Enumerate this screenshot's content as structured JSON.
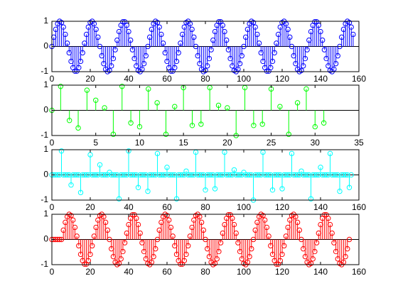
{
  "chart_data": [
    {
      "type": "stem",
      "color": "#0000ff",
      "xlim": [
        0,
        160
      ],
      "ylim": [
        -1,
        1
      ],
      "xticks": [
        0,
        20,
        40,
        60,
        80,
        100,
        120,
        140,
        160
      ],
      "yticks": [
        -1,
        0,
        1
      ],
      "x": [
        0,
        1,
        2,
        3,
        4,
        5,
        6,
        7,
        8,
        9,
        10,
        11,
        12,
        13,
        14,
        15,
        16,
        17,
        18,
        19,
        20,
        21,
        22,
        23,
        24,
        25,
        26,
        27,
        28,
        29,
        30,
        31,
        32,
        33,
        34,
        35,
        36,
        37,
        38,
        39,
        40,
        41,
        42,
        43,
        44,
        45,
        46,
        47,
        48,
        49,
        50,
        51,
        52,
        53,
        54,
        55,
        56,
        57,
        58,
        59,
        60,
        61,
        62,
        63,
        64,
        65,
        66,
        67,
        68,
        69,
        70,
        71,
        72,
        73,
        74,
        75,
        76,
        77,
        78,
        79,
        80,
        81,
        82,
        83,
        84,
        85,
        86,
        87,
        88,
        89,
        90,
        91,
        92,
        93,
        94,
        95,
        96,
        97,
        98,
        99,
        100,
        101,
        102,
        103,
        104,
        105,
        106,
        107,
        108,
        109,
        110,
        111,
        112,
        113,
        114,
        115,
        116,
        117,
        118,
        119,
        120,
        121,
        122,
        123,
        124,
        125,
        126,
        127,
        128,
        129,
        130,
        131,
        132,
        133,
        134,
        135,
        136,
        137,
        138,
        139,
        140,
        141,
        142,
        143,
        144,
        145,
        146,
        147,
        148,
        149,
        150,
        151,
        152,
        153,
        154,
        155,
        156,
        157
      ],
      "values": [
        0,
        0.37,
        0.68,
        0.9,
        1,
        0.95,
        0.77,
        0.48,
        0.13,
        -0.25,
        -0.59,
        -0.84,
        -0.98,
        -0.98,
        -0.84,
        -0.59,
        -0.25,
        0.13,
        0.48,
        0.77,
        0.95,
        1,
        0.9,
        0.68,
        0.37,
        0,
        -0.37,
        -0.68,
        -0.9,
        -1,
        -0.95,
        -0.77,
        -0.48,
        -0.13,
        0.25,
        0.59,
        0.84,
        0.98,
        0.98,
        0.84,
        0.59,
        0.25,
        -0.13,
        -0.48,
        -0.77,
        -0.95,
        -1,
        -0.9,
        -0.68,
        -0.37,
        0,
        0.37,
        0.68,
        0.9,
        1,
        0.95,
        0.77,
        0.48,
        0.13,
        -0.25,
        -0.59,
        -0.84,
        -0.98,
        -0.98,
        -0.84,
        -0.59,
        -0.25,
        0.13,
        0.48,
        0.77,
        0.95,
        1,
        0.9,
        0.68,
        0.37,
        0,
        -0.37,
        -0.68,
        -0.9,
        -1,
        -0.95,
        -0.77,
        -0.48,
        -0.13,
        0.25,
        0.59,
        0.84,
        0.98,
        0.98,
        0.84,
        0.59,
        0.25,
        -0.13,
        -0.48,
        -0.77,
        -0.95,
        -1,
        -0.9,
        -0.68,
        -0.37,
        0,
        0.37,
        0.68,
        0.9,
        1,
        0.95,
        0.77,
        0.48,
        0.13,
        -0.25,
        -0.59,
        -0.84,
        -0.98,
        -0.98,
        -0.84,
        -0.59,
        -0.25,
        0.13,
        0.48,
        0.77,
        0.95,
        1,
        0.9,
        0.68,
        0.37,
        0,
        -0.37,
        -0.68,
        -0.9,
        -1,
        -0.95,
        -0.77,
        -0.48,
        -0.13,
        0.25,
        0.59,
        0.84,
        0.98,
        0.98,
        0.84,
        0.59,
        0.25,
        -0.13,
        -0.48,
        -0.77,
        -0.95,
        -1,
        -0.9,
        -0.68,
        -0.37,
        0,
        0.37,
        0.68,
        0.9,
        1,
        0.95,
        0.77,
        0.48
      ]
    },
    {
      "type": "stem",
      "color": "#00ff00",
      "xlim": [
        0,
        35
      ],
      "ylim": [
        -1,
        1
      ],
      "xticks": [
        0,
        5,
        10,
        15,
        20,
        25,
        30,
        35
      ],
      "yticks": [
        -1,
        0,
        1
      ],
      "x": [
        0,
        1,
        2,
        3,
        4,
        5,
        6,
        7,
        8,
        9,
        10,
        11,
        12,
        13,
        14,
        15,
        16,
        17,
        18,
        19,
        20,
        21,
        22,
        23,
        24,
        25,
        26,
        27,
        28,
        29,
        30,
        31
      ],
      "values": [
        0,
        0.95,
        -0.4,
        -0.7,
        0.8,
        0.4,
        0.1,
        -0.95,
        0.95,
        -0.5,
        -0.65,
        0.85,
        0.3,
        -0.95,
        0.15,
        0.9,
        -0.6,
        -0.55,
        0.9,
        0.2,
        0.1,
        -1,
        0.9,
        -0.6,
        -0.55,
        0.85,
        0.15,
        -0.95,
        0.3,
        0.85,
        -0.65,
        -0.5
      ]
    },
    {
      "type": "stem",
      "color": "#00ffff",
      "xlim": [
        0,
        160
      ],
      "ylim": [
        -1,
        1
      ],
      "xticks": [
        0,
        20,
        40,
        60,
        80,
        100,
        120,
        140,
        160
      ],
      "yticks": [
        -1,
        0,
        1
      ],
      "x": [
        0,
        1,
        2,
        3,
        4,
        5,
        6,
        7,
        8,
        9,
        10,
        11,
        12,
        13,
        14,
        15,
        16,
        17,
        18,
        19,
        20,
        21,
        22,
        23,
        24,
        25,
        26,
        27,
        28,
        29,
        30,
        31,
        32,
        33,
        34,
        35,
        36,
        37,
        38,
        39,
        40,
        41,
        42,
        43,
        44,
        45,
        46,
        47,
        48,
        49,
        50,
        51,
        52,
        53,
        54,
        55,
        56,
        57,
        58,
        59,
        60,
        61,
        62,
        63,
        64,
        65,
        66,
        67,
        68,
        69,
        70,
        71,
        72,
        73,
        74,
        75,
        76,
        77,
        78,
        79,
        80,
        81,
        82,
        83,
        84,
        85,
        86,
        87,
        88,
        89,
        90,
        91,
        92,
        93,
        94,
        95,
        96,
        97,
        98,
        99,
        100,
        101,
        102,
        103,
        104,
        105,
        106,
        107,
        108,
        109,
        110,
        111,
        112,
        113,
        114,
        115,
        116,
        117,
        118,
        119,
        120,
        121,
        122,
        123,
        124,
        125,
        126,
        127,
        128,
        129,
        130,
        131,
        132,
        133,
        134,
        135,
        136,
        137,
        138,
        139,
        140,
        141,
        142,
        143,
        144,
        145,
        146,
        147,
        148,
        149,
        150,
        151,
        152,
        153,
        154,
        155,
        156
      ],
      "values": [
        0,
        0,
        0,
        0,
        0,
        0.95,
        0,
        0,
        0,
        0,
        -0.4,
        0,
        0,
        0,
        0,
        -0.7,
        0,
        0,
        0,
        0,
        0.8,
        0,
        0,
        0,
        0,
        0.4,
        0,
        0,
        0,
        0,
        0.1,
        0,
        0,
        0,
        0,
        -0.95,
        0,
        0,
        0,
        0,
        0.95,
        0,
        0,
        0,
        0,
        -0.5,
        0,
        0,
        0,
        0,
        -0.65,
        0,
        0,
        0,
        0,
        0.85,
        0,
        0,
        0,
        0,
        0.3,
        0,
        0,
        0,
        0,
        -0.95,
        0,
        0,
        0,
        0,
        0.15,
        0,
        0,
        0,
        0,
        0.9,
        0,
        0,
        0,
        0,
        -0.6,
        0,
        0,
        0,
        0,
        -0.55,
        0,
        0,
        0,
        0,
        0.9,
        0,
        0,
        0,
        0,
        0.2,
        0,
        0,
        0,
        0,
        0.1,
        0,
        0,
        0,
        0,
        -1,
        0,
        0,
        0,
        0,
        0.9,
        0,
        0,
        0,
        0,
        -0.6,
        0,
        0,
        0,
        0,
        -0.55,
        0,
        0,
        0,
        0,
        0.85,
        0,
        0,
        0,
        0,
        0.15,
        0,
        0,
        0,
        0,
        -0.95,
        0,
        0,
        0,
        0,
        0.3,
        0,
        0,
        0,
        0,
        0.85,
        0,
        0,
        0,
        0,
        -0.65,
        0,
        0,
        0,
        0,
        -0.5,
        0
      ]
    },
    {
      "type": "stem",
      "color": "#ff0000",
      "xlim": [
        0,
        160
      ],
      "ylim": [
        -1,
        1
      ],
      "xticks": [
        0,
        20,
        40,
        60,
        80,
        100,
        120,
        140,
        160
      ],
      "yticks": [
        -1,
        0,
        1
      ],
      "x": [
        0,
        1,
        2,
        3,
        4,
        5,
        6,
        7,
        8,
        9,
        10,
        11,
        12,
        13,
        14,
        15,
        16,
        17,
        18,
        19,
        20,
        21,
        22,
        23,
        24,
        25,
        26,
        27,
        28,
        29,
        30,
        31,
        32,
        33,
        34,
        35,
        36,
        37,
        38,
        39,
        40,
        41,
        42,
        43,
        44,
        45,
        46,
        47,
        48,
        49,
        50,
        51,
        52,
        53,
        54,
        55,
        56,
        57,
        58,
        59,
        60,
        61,
        62,
        63,
        64,
        65,
        66,
        67,
        68,
        69,
        70,
        71,
        72,
        73,
        74,
        75,
        76,
        77,
        78,
        79,
        80,
        81,
        82,
        83,
        84,
        85,
        86,
        87,
        88,
        89,
        90,
        91,
        92,
        93,
        94,
        95,
        96,
        97,
        98,
        99,
        100,
        101,
        102,
        103,
        104,
        105,
        106,
        107,
        108,
        109,
        110,
        111,
        112,
        113,
        114,
        115,
        116,
        117,
        118,
        119,
        120,
        121,
        122,
        123,
        124,
        125,
        126,
        127,
        128,
        129,
        130,
        131,
        132,
        133,
        134,
        135,
        136,
        137,
        138,
        139,
        140,
        141,
        142,
        143,
        144,
        145,
        146,
        147,
        148,
        149,
        150,
        151,
        152,
        153,
        154,
        155
      ],
      "values": [
        0,
        0,
        0,
        0,
        0,
        0,
        0.37,
        0.68,
        0.9,
        1,
        0.95,
        0.77,
        0.48,
        0.13,
        -0.25,
        -0.59,
        -0.84,
        -0.98,
        -0.98,
        -0.84,
        -0.59,
        -0.25,
        0.13,
        0.48,
        0.77,
        0.95,
        1,
        0.9,
        0.68,
        0.37,
        0,
        -0.37,
        -0.68,
        -0.9,
        -1,
        -0.95,
        -0.77,
        -0.48,
        -0.13,
        0.25,
        0.59,
        0.84,
        0.98,
        0.98,
        0.84,
        0.59,
        0.25,
        -0.13,
        -0.48,
        -0.77,
        -0.95,
        -1,
        -0.9,
        -0.68,
        -0.37,
        0,
        0.37,
        0.68,
        0.9,
        1,
        0.95,
        0.77,
        0.48,
        0.13,
        -0.25,
        -0.59,
        -0.84,
        -0.98,
        -0.98,
        -0.84,
        -0.59,
        -0.25,
        0.13,
        0.48,
        0.77,
        0.95,
        1,
        0.9,
        0.68,
        0.37,
        0,
        -0.37,
        -0.68,
        -0.9,
        -1,
        -0.95,
        -0.77,
        -0.48,
        -0.13,
        0.25,
        0.59,
        0.84,
        0.98,
        0.98,
        0.84,
        0.59,
        0.25,
        -0.13,
        -0.48,
        -0.77,
        -0.95,
        -1,
        -0.9,
        -0.68,
        -0.37,
        0,
        0.37,
        0.68,
        0.9,
        1,
        0.95,
        0.77,
        0.48,
        0.13,
        -0.25,
        -0.59,
        -0.84,
        -0.98,
        -0.98,
        -0.84,
        -0.59,
        -0.25,
        0.13,
        0.48,
        0.77,
        0.95,
        1,
        0.9,
        0.68,
        0.37,
        0,
        -0.37,
        -0.68,
        -0.9,
        -1,
        -0.95,
        -0.77,
        -0.48,
        -0.13,
        0.25,
        0.59,
        0.84,
        0.98,
        0.98,
        0.84,
        0.59,
        0.25,
        -0.13,
        -0.48,
        -0.77,
        -0.95,
        -1,
        -0.9,
        -0.68,
        -0.37,
        0
      ]
    }
  ]
}
